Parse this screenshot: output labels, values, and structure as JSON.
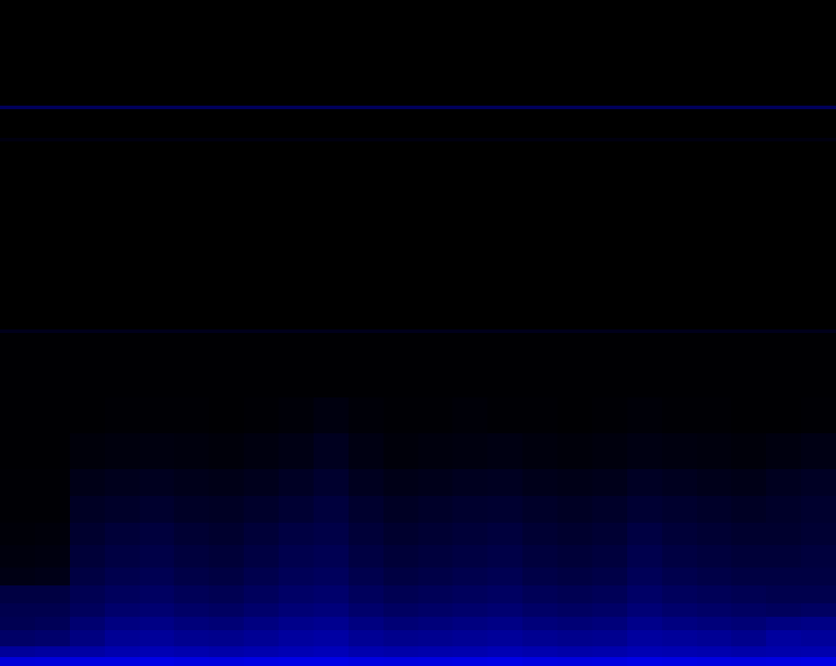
{
  "chart_data": {
    "type": "heatmap",
    "color": "#0000ff",
    "tick_labels": false,
    "xlim": [
      0,
      933
    ],
    "ylim": [
      0,
      744
    ],
    "zlim": [
      0,
      100
    ],
    "x_edges": [
      0,
      39,
      78,
      117,
      156,
      194,
      233,
      272,
      311,
      350,
      389,
      428,
      467,
      505,
      544,
      583,
      622,
      661,
      700,
      739,
      778,
      816,
      855,
      894,
      933
    ],
    "y_edges": [
      0,
      10,
      22,
      40,
      55,
      70,
      90,
      110,
      135,
      160,
      190,
      220,
      260,
      300,
      372,
      376,
      586,
      590,
      622,
      626,
      744
    ],
    "cells": [
      [
        85,
        86,
        88,
        88,
        90,
        88,
        87,
        89,
        90,
        90,
        88,
        87,
        88,
        89,
        90,
        88,
        87,
        88,
        90,
        89,
        88,
        87,
        88,
        89
      ],
      [
        60,
        62,
        64,
        68,
        70,
        68,
        66,
        68,
        70,
        72,
        68,
        66,
        67,
        68,
        70,
        68,
        66,
        67,
        70,
        69,
        68,
        66,
        67,
        68
      ],
      [
        40,
        42,
        50,
        58,
        60,
        56,
        55,
        58,
        62,
        64,
        58,
        55,
        56,
        58,
        60,
        57,
        55,
        56,
        62,
        60,
        58,
        55,
        62,
        60
      ],
      [
        32,
        34,
        44,
        50,
        52,
        48,
        46,
        50,
        54,
        56,
        50,
        46,
        48,
        50,
        52,
        48,
        46,
        48,
        54,
        50,
        48,
        46,
        50,
        52
      ],
      [
        30,
        30,
        36,
        42,
        44,
        40,
        38,
        42,
        46,
        48,
        42,
        38,
        40,
        42,
        44,
        40,
        38,
        40,
        46,
        42,
        40,
        38,
        36,
        38
      ],
      [
        26,
        26,
        32,
        36,
        38,
        34,
        32,
        36,
        40,
        42,
        36,
        32,
        34,
        36,
        38,
        34,
        32,
        34,
        40,
        36,
        34,
        32,
        30,
        30
      ],
      [
        8,
        9,
        26,
        30,
        32,
        28,
        26,
        30,
        34,
        36,
        30,
        26,
        28,
        30,
        32,
        28,
        26,
        28,
        34,
        30,
        28,
        26,
        26,
        26
      ],
      [
        5,
        6,
        22,
        26,
        28,
        24,
        22,
        26,
        30,
        32,
        26,
        22,
        24,
        26,
        28,
        24,
        22,
        24,
        30,
        26,
        24,
        22,
        22,
        24
      ],
      [
        3,
        4,
        18,
        22,
        24,
        20,
        18,
        22,
        26,
        28,
        22,
        18,
        20,
        22,
        24,
        20,
        18,
        20,
        26,
        22,
        20,
        18,
        18,
        20
      ],
      [
        2,
        2,
        14,
        16,
        18,
        15,
        14,
        17,
        20,
        24,
        18,
        14,
        16,
        18,
        19,
        16,
        14,
        16,
        20,
        18,
        16,
        14,
        16,
        18
      ],
      [
        2,
        2,
        9,
        11,
        12,
        10,
        9,
        11,
        14,
        18,
        12,
        9,
        10,
        12,
        13,
        10,
        9,
        10,
        14,
        12,
        10,
        9,
        12,
        14
      ],
      [
        1,
        1,
        4,
        5,
        6,
        5,
        4,
        6,
        8,
        12,
        7,
        4,
        5,
        6,
        7,
        5,
        4,
        5,
        7,
        6,
        5,
        4,
        6,
        8
      ],
      [
        1,
        1,
        1,
        2,
        2,
        2,
        1,
        2,
        3,
        6,
        3,
        2,
        2,
        3,
        2,
        2,
        1,
        2,
        3,
        2,
        2,
        1,
        1,
        2
      ],
      [
        1,
        1,
        1,
        1,
        1,
        1,
        1,
        1,
        1,
        1,
        1,
        1,
        1,
        1,
        1,
        1,
        1,
        1,
        1,
        1,
        1,
        1,
        1,
        1
      ],
      [
        10,
        10,
        10,
        10,
        10,
        10,
        10,
        10,
        10,
        10,
        10,
        10,
        10,
        10,
        10,
        10,
        10,
        10,
        10,
        10,
        10,
        10,
        10,
        10
      ],
      [
        0,
        0,
        0,
        0,
        0,
        0,
        0,
        0,
        0,
        0,
        0,
        0,
        0,
        0,
        0,
        0,
        0,
        0,
        0,
        0,
        0,
        0,
        0,
        0
      ],
      [
        6,
        6,
        6,
        6,
        6,
        6,
        6,
        6,
        6,
        6,
        6,
        6,
        6,
        6,
        6,
        6,
        6,
        6,
        6,
        6,
        6,
        6,
        6,
        6
      ],
      [
        0,
        0,
        0,
        0,
        0,
        0,
        0,
        0,
        0,
        0,
        0,
        0,
        0,
        0,
        0,
        0,
        0,
        0,
        0,
        0,
        0,
        0,
        0,
        0
      ],
      [
        35,
        35,
        35,
        35,
        35,
        35,
        35,
        35,
        35,
        35,
        35,
        35,
        35,
        35,
        35,
        35,
        35,
        35,
        35,
        35,
        35,
        35,
        35,
        35
      ],
      [
        0,
        0,
        0,
        0,
        0,
        0,
        0,
        0,
        0,
        0,
        0,
        0,
        0,
        0,
        0,
        0,
        0,
        0,
        0,
        0,
        0,
        0,
        0,
        0
      ]
    ]
  }
}
